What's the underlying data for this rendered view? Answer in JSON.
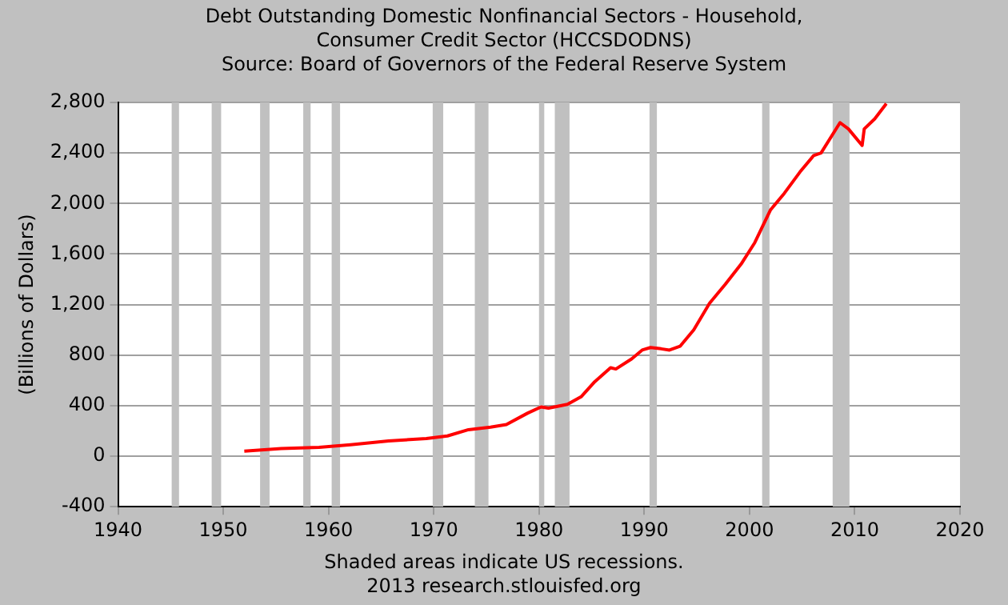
{
  "chart_data": {
    "type": "line",
    "title": "Debt Outstanding Domestic Nonfinancial Sectors - Household, Consumer Credit Sector (HCCSDODNS)",
    "subtitle": "Source: Board of Governors of the Federal Reserve System",
    "ylabel": "(Billions of Dollars)",
    "annotations": [
      "Shaded areas indicate US recessions.",
      "2013 research.stlouisfed.org"
    ],
    "x": [
      1952.0,
      1955.5,
      1959.1,
      1962.1,
      1965.7,
      1969.3,
      1971.3,
      1973.3,
      1975.4,
      1976.9,
      1978.9,
      1980.2,
      1980.9,
      1982.7,
      1984.0,
      1985.3,
      1986.8,
      1987.3,
      1988.8,
      1989.8,
      1990.6,
      1991.6,
      1992.4,
      1993.4,
      1994.7,
      1996.2,
      1997.7,
      1999.2,
      2000.5,
      2002.0,
      2003.3,
      2004.8,
      2006.1,
      2006.8,
      2008.6,
      2009.4,
      2010.7,
      2010.9,
      2011.9,
      2013.0
    ],
    "series": [
      {
        "color": "#ff0000",
        "values": [
          40,
          60,
          70,
          90,
          120,
          140,
          160,
          210,
          230,
          250,
          340,
          390,
          380,
          410,
          470,
          590,
          700,
          690,
          770,
          840,
          860,
          850,
          840,
          870,
          1000,
          1210,
          1360,
          1520,
          1690,
          1950,
          2080,
          2250,
          2380,
          2400,
          2640,
          2590,
          2460,
          2590,
          2670,
          2790
        ]
      }
    ],
    "xlim": [
      1940,
      2020
    ],
    "xticks": [
      1940,
      1950,
      1960,
      1970,
      1980,
      1990,
      2000,
      2010,
      2020
    ],
    "ylim": [
      -400,
      2800
    ],
    "yticks": [
      -400,
      0,
      400,
      800,
      {
        "value": 1200,
        "label": "1,200"
      },
      {
        "value": 1600,
        "label": "1,600"
      },
      {
        "value": 2000,
        "label": "2,000"
      },
      {
        "value": 2400,
        "label": "2,400"
      },
      {
        "value": 2800,
        "label": "2,800"
      }
    ],
    "bands": [
      {
        "axis": "x",
        "from": 1945.1,
        "to": 1945.8,
        "color": "#c0c0c0"
      },
      {
        "axis": "x",
        "from": 1948.9,
        "to": 1949.8,
        "color": "#c0c0c0"
      },
      {
        "axis": "x",
        "from": 1953.5,
        "to": 1954.4,
        "color": "#c0c0c0"
      },
      {
        "axis": "x",
        "from": 1957.6,
        "to": 1958.3,
        "color": "#c0c0c0"
      },
      {
        "axis": "x",
        "from": 1960.3,
        "to": 1961.1,
        "color": "#c0c0c0"
      },
      {
        "axis": "x",
        "from": 1969.9,
        "to": 1970.9,
        "color": "#c0c0c0"
      },
      {
        "axis": "x",
        "from": 1973.9,
        "to": 1975.2,
        "color": "#c0c0c0"
      },
      {
        "axis": "x",
        "from": 1980.0,
        "to": 1980.5,
        "color": "#c0c0c0"
      },
      {
        "axis": "x",
        "from": 1981.5,
        "to": 1982.9,
        "color": "#c0c0c0"
      },
      {
        "axis": "x",
        "from": 1990.5,
        "to": 1991.2,
        "color": "#c0c0c0"
      },
      {
        "axis": "x",
        "from": 2001.2,
        "to": 2001.9,
        "color": "#c0c0c0"
      },
      {
        "axis": "x",
        "from": 2007.9,
        "to": 2009.5,
        "color": "#c0c0c0"
      }
    ],
    "grid": "y",
    "legend": false,
    "marker": "none",
    "line_style": "solid"
  }
}
